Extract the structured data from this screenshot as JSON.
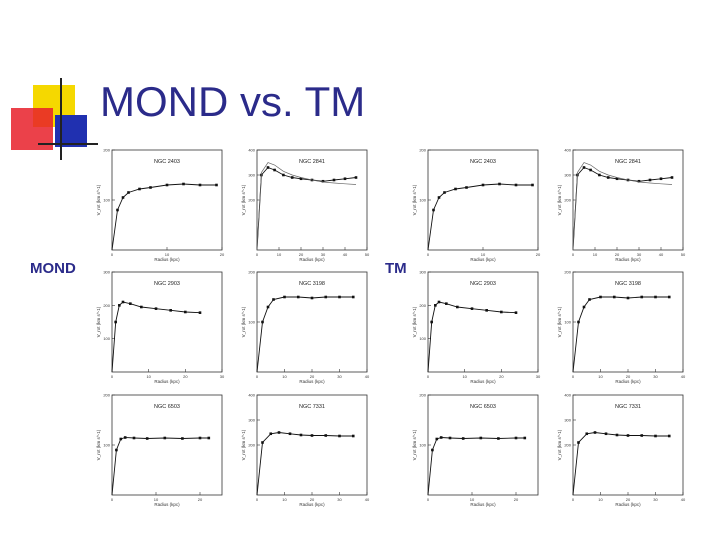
{
  "slide": {
    "title": "MOND vs. TM",
    "left_label": "MOND",
    "right_label": "TM",
    "colors": {
      "title": "#2b2b8a",
      "yellow": "#f5d800",
      "red": "#e8202a",
      "blue": "#2030b0"
    }
  },
  "chart_data": [
    {
      "type": "line",
      "name": "NGC 2403",
      "x": [
        0,
        1,
        2,
        3,
        5,
        7,
        10,
        13,
        16,
        19
      ],
      "xlim": [
        0,
        20
      ],
      "ylim": [
        0,
        200
      ],
      "xticks": [
        0,
        10,
        20
      ],
      "yticks": [
        100,
        200
      ],
      "xlabel": "Radius (kpc)",
      "ylabel": "V_rot (km s^-1)",
      "series": [
        {
          "values": [
            0,
            80,
            105,
            115,
            122,
            125,
            130,
            132,
            130,
            130
          ]
        }
      ]
    },
    {
      "type": "line",
      "name": "NGC 2841",
      "x": [
        0,
        2,
        5,
        8,
        12,
        16,
        20,
        25,
        30,
        35,
        40,
        45
      ],
      "xlim": [
        0,
        50
      ],
      "ylim": [
        0,
        400
      ],
      "xticks": [
        0,
        10,
        20,
        30,
        40,
        50
      ],
      "yticks": [
        200,
        300,
        400
      ],
      "xlabel": "Radius (kpc)",
      "ylabel": "V_rot (km s^-1)",
      "series": [
        {
          "values": [
            0,
            300,
            330,
            320,
            300,
            290,
            285,
            280,
            275,
            280,
            285,
            290
          ]
        },
        {
          "values": [
            0,
            310,
            350,
            340,
            315,
            300,
            290,
            280,
            272,
            268,
            265,
            262
          ]
        }
      ]
    },
    {
      "type": "line",
      "name": "NGC 2403",
      "x": [
        0,
        1,
        2,
        3,
        5,
        7,
        10,
        13,
        16,
        19
      ],
      "xlim": [
        0,
        20
      ],
      "ylim": [
        0,
        200
      ],
      "xticks": [
        0,
        10,
        20
      ],
      "yticks": [
        100,
        200
      ],
      "xlabel": "Radius (kpc)",
      "ylabel": "V_rot (km s^-1)",
      "series": [
        {
          "values": [
            0,
            80,
            105,
            115,
            122,
            125,
            130,
            132,
            130,
            130
          ]
        }
      ]
    },
    {
      "type": "line",
      "name": "NGC 2841",
      "x": [
        0,
        2,
        5,
        8,
        12,
        16,
        20,
        25,
        30,
        35,
        40,
        45
      ],
      "xlim": [
        0,
        50
      ],
      "ylim": [
        0,
        400
      ],
      "xticks": [
        0,
        10,
        20,
        30,
        40,
        50
      ],
      "yticks": [
        200,
        300,
        400
      ],
      "xlabel": "Radius (kpc)",
      "ylabel": "V_rot (km s^-1)",
      "series": [
        {
          "values": [
            0,
            300,
            330,
            320,
            300,
            290,
            285,
            280,
            275,
            280,
            285,
            290
          ]
        },
        {
          "values": [
            0,
            310,
            350,
            340,
            315,
            300,
            290,
            280,
            272,
            268,
            265,
            262
          ]
        }
      ]
    },
    {
      "type": "line",
      "name": "NGC 2903",
      "x": [
        0,
        1,
        2,
        3,
        5,
        8,
        12,
        16,
        20,
        24
      ],
      "xlim": [
        0,
        30
      ],
      "ylim": [
        0,
        300
      ],
      "xticks": [
        0,
        10,
        20,
        30
      ],
      "yticks": [
        100,
        200,
        300
      ],
      "xlabel": "Radius (kpc)",
      "ylabel": "V_rot (km s^-1)",
      "series": [
        {
          "values": [
            0,
            150,
            200,
            210,
            205,
            195,
            190,
            185,
            180,
            178
          ]
        }
      ]
    },
    {
      "type": "line",
      "name": "NGC 3198",
      "x": [
        0,
        2,
        4,
        6,
        10,
        15,
        20,
        25,
        30,
        35
      ],
      "xlim": [
        0,
        40
      ],
      "ylim": [
        0,
        200
      ],
      "xticks": [
        0,
        10,
        20,
        30,
        40
      ],
      "yticks": [
        100,
        200
      ],
      "xlabel": "Radius (kpc)",
      "ylabel": "V_rot (km s^-1)",
      "series": [
        {
          "values": [
            0,
            100,
            130,
            145,
            150,
            150,
            148,
            150,
            150,
            150
          ]
        }
      ]
    },
    {
      "type": "line",
      "name": "NGC 2903",
      "x": [
        0,
        1,
        2,
        3,
        5,
        8,
        12,
        16,
        20,
        24
      ],
      "xlim": [
        0,
        30
      ],
      "ylim": [
        0,
        300
      ],
      "xticks": [
        0,
        10,
        20,
        30
      ],
      "yticks": [
        100,
        200,
        300
      ],
      "xlabel": "Radius (kpc)",
      "ylabel": "V_rot (km s^-1)",
      "series": [
        {
          "values": [
            0,
            150,
            200,
            210,
            205,
            195,
            190,
            185,
            180,
            178
          ]
        }
      ]
    },
    {
      "type": "line",
      "name": "NGC 3198",
      "x": [
        0,
        2,
        4,
        6,
        10,
        15,
        20,
        25,
        30,
        35
      ],
      "xlim": [
        0,
        40
      ],
      "ylim": [
        0,
        200
      ],
      "xticks": [
        0,
        10,
        20,
        30,
        40
      ],
      "yticks": [
        100,
        200
      ],
      "xlabel": "Radius (kpc)",
      "ylabel": "V_rot (km s^-1)",
      "series": [
        {
          "values": [
            0,
            100,
            130,
            145,
            150,
            150,
            148,
            150,
            150,
            150
          ]
        }
      ]
    },
    {
      "type": "line",
      "name": "NGC 6503",
      "x": [
        0,
        1,
        2,
        3,
        5,
        8,
        12,
        16,
        20,
        22
      ],
      "xlim": [
        0,
        25
      ],
      "ylim": [
        0,
        200
      ],
      "xticks": [
        0,
        10,
        20
      ],
      "yticks": [
        100,
        200
      ],
      "xlabel": "Radius (kpc)",
      "ylabel": "V_rot (km s^-1)",
      "series": [
        {
          "values": [
            0,
            90,
            112,
            115,
            114,
            113,
            114,
            113,
            114,
            114
          ]
        }
      ]
    },
    {
      "type": "line",
      "name": "NGC 7331",
      "x": [
        0,
        2,
        5,
        8,
        12,
        16,
        20,
        25,
        30,
        35
      ],
      "xlim": [
        0,
        40
      ],
      "ylim": [
        0,
        400
      ],
      "xticks": [
        0,
        10,
        20,
        30,
        40
      ],
      "yticks": [
        200,
        300,
        400
      ],
      "xlabel": "Radius (kpc)",
      "ylabel": "V_rot (km s^-1)",
      "series": [
        {
          "values": [
            0,
            210,
            245,
            250,
            245,
            240,
            238,
            238,
            236,
            236
          ]
        }
      ]
    },
    {
      "type": "line",
      "name": "NGC 6503",
      "x": [
        0,
        1,
        2,
        3,
        5,
        8,
        12,
        16,
        20,
        22
      ],
      "xlim": [
        0,
        25
      ],
      "ylim": [
        0,
        200
      ],
      "xticks": [
        0,
        10,
        20
      ],
      "yticks": [
        100,
        200
      ],
      "xlabel": "Radius (kpc)",
      "ylabel": "V_rot (km s^-1)",
      "series": [
        {
          "values": [
            0,
            90,
            112,
            115,
            114,
            113,
            114,
            113,
            114,
            114
          ]
        }
      ]
    },
    {
      "type": "line",
      "name": "NGC 7331",
      "x": [
        0,
        2,
        5,
        8,
        12,
        16,
        20,
        25,
        30,
        35
      ],
      "xlim": [
        0,
        40
      ],
      "ylim": [
        0,
        400
      ],
      "xticks": [
        0,
        10,
        20,
        30,
        40
      ],
      "yticks": [
        200,
        300,
        400
      ],
      "xlabel": "Radius (kpc)",
      "ylabel": "V_rot (km s^-1)",
      "series": [
        {
          "values": [
            0,
            210,
            245,
            250,
            245,
            240,
            238,
            238,
            236,
            236
          ]
        }
      ]
    }
  ]
}
